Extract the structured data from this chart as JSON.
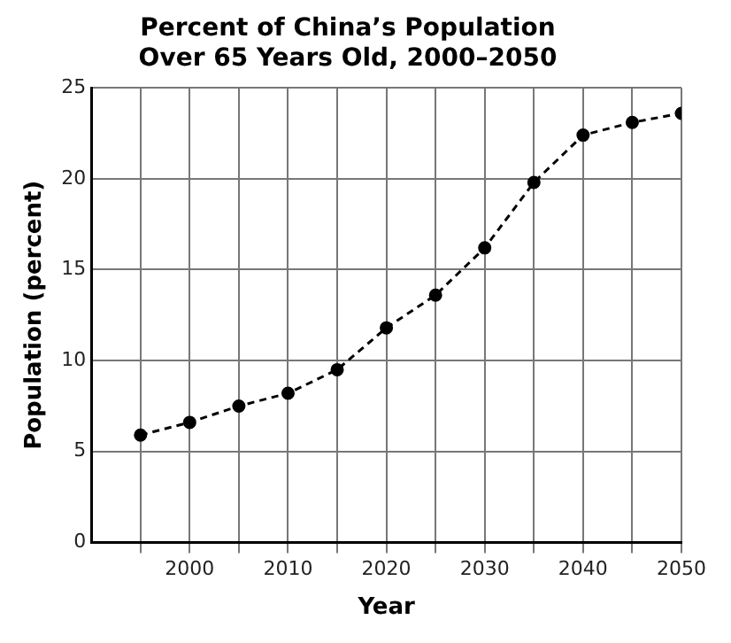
{
  "chart_data": {
    "type": "line",
    "title": "Percent of China’s Population\nOver 65 Years Old, 2000–2050",
    "xlabel": "Year",
    "ylabel": "Population (percent)",
    "x": [
      1995,
      2000,
      2005,
      2010,
      2015,
      2020,
      2025,
      2030,
      2035,
      2040,
      2045,
      2050
    ],
    "series": [
      {
        "color": "#000000",
        "values": [
          5.9,
          6.6,
          7.5,
          8.2,
          9.5,
          11.8,
          13.6,
          16.2,
          19.8,
          22.4,
          23.1,
          23.6
        ]
      }
    ],
    "xlim": [
      1990,
      2050
    ],
    "xticks": [
      {
        "value": 1995,
        "label": null
      },
      2000,
      {
        "value": 2005,
        "label": null
      },
      2010,
      {
        "value": 2015,
        "label": null
      },
      2020,
      {
        "value": 2025,
        "label": null
      },
      2030,
      {
        "value": 2035,
        "label": null
      },
      2040,
      {
        "value": 2045,
        "label": null
      },
      2050
    ],
    "ylim": [
      0,
      25
    ],
    "yticks": [
      0,
      5,
      10,
      15,
      20,
      25
    ],
    "grid": true,
    "marker": "circle",
    "line_style": "dashed"
  }
}
